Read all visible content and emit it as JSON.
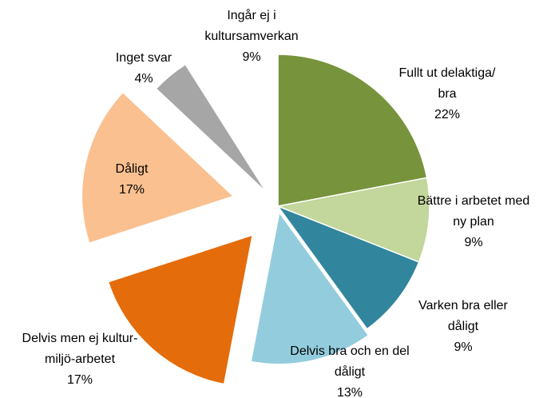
{
  "chart_data": {
    "type": "pie",
    "categories": [
      "Fullt ut delaktiga/\nbra",
      "Bättre i arbetet med\nny plan",
      "Varken bra eller\ndåligt",
      "Delvis bra och en del\ndåligt",
      "Delvis men ej kultur-\nmiljö-arbetet",
      "Dåligt",
      "Inget svar",
      "Ingår ej i\nkultursamverkan"
    ],
    "values": [
      22,
      9,
      9,
      13,
      17,
      17,
      4,
      9
    ],
    "value_labels": [
      "22%",
      "9%",
      "9%",
      "13%",
      "17%",
      "17%",
      "4%",
      "9%"
    ],
    "colors": [
      "#77933c",
      "#c3d69b",
      "#31859c",
      "#93cddd",
      "#e46c0a",
      "#fac090",
      "#a6a6a6",
      "#ffffff"
    ]
  }
}
